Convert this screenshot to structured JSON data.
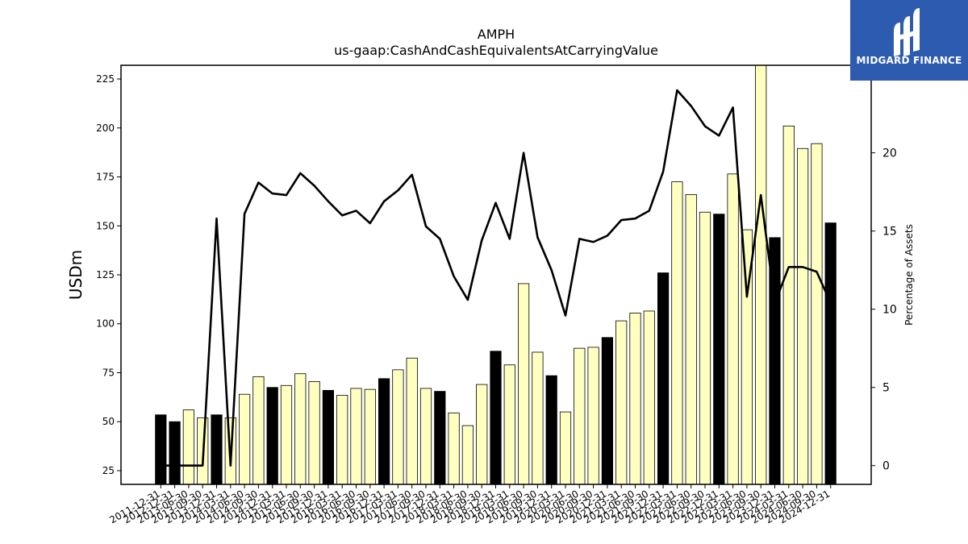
{
  "logo": {
    "text": "MIDGARD FINANCE",
    "color": "#2d5bb0"
  },
  "chart_data": {
    "type": "bar",
    "title": "AMPH",
    "subtitle": "us-gaap:CashAndCashEquivalentsAtCarryingValue",
    "ylabel": "USDm",
    "y2label": "Percentage of Assets",
    "ylim": [
      18,
      232
    ],
    "y2lim": [
      -1.2,
      25.6
    ],
    "yticks": [
      25,
      50,
      75,
      100,
      125,
      150,
      175,
      200,
      225
    ],
    "y2ticks": [
      0,
      5,
      10,
      15,
      20
    ],
    "categories": [
      "2011-12-31",
      "2012-12-31",
      "2013-06-30",
      "2013-09-30",
      "2013-12-31",
      "2014-03-31",
      "2014-06-30",
      "2014-09-30",
      "2014-12-31",
      "2015-03-31",
      "2015-06-30",
      "2015-09-30",
      "2015-12-31",
      "2016-03-31",
      "2016-06-30",
      "2016-09-30",
      "2016-12-31",
      "2017-03-31",
      "2017-06-30",
      "2017-09-30",
      "2017-12-31",
      "2018-03-31",
      "2018-06-30",
      "2018-09-30",
      "2018-12-31",
      "2019-03-31",
      "2019-06-30",
      "2019-09-30",
      "2019-12-31",
      "2020-03-31",
      "2020-06-30",
      "2020-09-30",
      "2020-12-31",
      "2021-03-31",
      "2021-06-30",
      "2021-09-30",
      "2021-12-31",
      "2022-03-31",
      "2022-06-30",
      "2022-09-30",
      "2022-12-31",
      "2023-03-31",
      "2023-06-30",
      "2023-09-30",
      "2023-12-31",
      "2024-03-31",
      "2024-06-30",
      "2024-09-30",
      "2024-12-31"
    ],
    "series": [
      {
        "type": "bar",
        "values": [
          53.5,
          50.0,
          56.0,
          52.0,
          53.5,
          52.0,
          64.0,
          73.0,
          67.5,
          68.5,
          74.5,
          70.5,
          66.0,
          63.5,
          67.0,
          66.5,
          72.0,
          76.5,
          82.5,
          67.0,
          65.5,
          54.5,
          48.0,
          69.0,
          86.0,
          79.0,
          120.5,
          85.5,
          73.5,
          55.0,
          87.5,
          88.0,
          93.0,
          101.5,
          105.5,
          106.5,
          126.0,
          172.5,
          166.0,
          157.0,
          156.0,
          176.5,
          148.0,
          232.0,
          144.0,
          201.0,
          189.5,
          192.0,
          151.5
        ],
        "colors": [
          "#000000",
          "#000000",
          "#ffffc0",
          "#ffffc0",
          "#000000",
          "#ffffc0",
          "#ffffc0",
          "#ffffc0",
          "#000000",
          "#ffffc0",
          "#ffffc0",
          "#ffffc0",
          "#000000",
          "#ffffc0",
          "#ffffc0",
          "#ffffc0",
          "#000000",
          "#ffffc0",
          "#ffffc0",
          "#ffffc0",
          "#000000",
          "#ffffc0",
          "#ffffc0",
          "#ffffc0",
          "#000000",
          "#ffffc0",
          "#ffffc0",
          "#ffffc0",
          "#000000",
          "#ffffc0",
          "#ffffc0",
          "#ffffc0",
          "#000000",
          "#ffffc0",
          "#ffffc0",
          "#ffffc0",
          "#000000",
          "#ffffc0",
          "#ffffc0",
          "#ffffc0",
          "#000000",
          "#ffffc0",
          "#ffffc0",
          "#ffffc0",
          "#000000",
          "#ffffc0",
          "#ffffc0",
          "#ffffc0",
          "#000000"
        ]
      },
      {
        "type": "line",
        "axis": "right",
        "color": "#000000",
        "values": [
          0.0,
          0.0,
          0.0,
          0.0,
          15.8,
          0.0,
          16.1,
          18.1,
          17.4,
          17.3,
          18.7,
          17.9,
          16.9,
          16.0,
          16.3,
          15.5,
          16.9,
          17.6,
          18.6,
          15.3,
          14.5,
          12.1,
          10.6,
          14.4,
          16.8,
          14.5,
          20.0,
          14.6,
          12.5,
          9.6,
          14.5,
          14.3,
          14.7,
          15.7,
          15.8,
          16.3,
          18.8,
          24.0,
          23.0,
          21.7,
          21.1,
          22.9,
          10.8,
          17.3,
          10.4,
          12.7,
          12.7,
          12.4,
          10.4
        ]
      }
    ],
    "grid": false,
    "legend": "none"
  }
}
